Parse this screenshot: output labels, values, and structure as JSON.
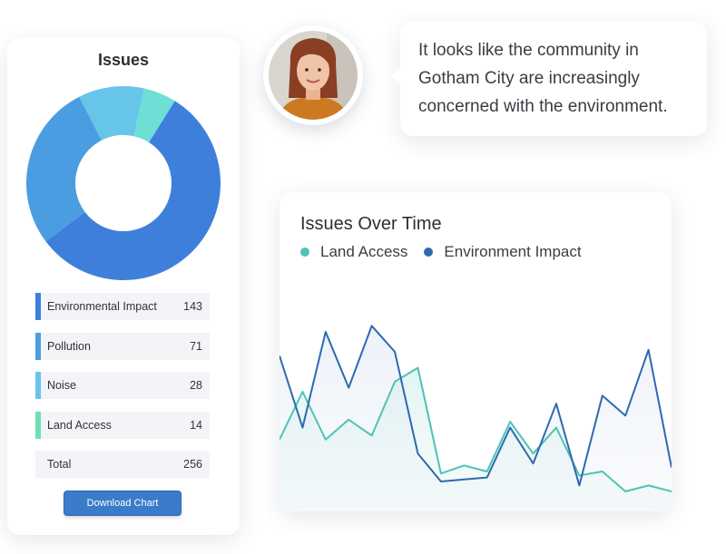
{
  "issues_panel": {
    "title": "Issues",
    "download_label": "Download Chart"
  },
  "chart_data": [
    {
      "type": "pie",
      "title": "Issues",
      "categories": [
        "Environmental Impact",
        "Pollution",
        "Noise",
        "Land Access"
      ],
      "values": [
        143,
        71,
        28,
        14
      ],
      "colors": [
        "#3f7fdc",
        "#4a9de0",
        "#67c5ea",
        "#6ddfd5"
      ],
      "total_label": "Total",
      "total": 256
    },
    {
      "type": "line",
      "title": "Issues Over Time",
      "xlabel": "",
      "ylabel": "",
      "legend": "top-left",
      "grid": false,
      "x": [
        0,
        1,
        2,
        3,
        4,
        5,
        6,
        7,
        8,
        9,
        10,
        11,
        12,
        13,
        14,
        15,
        16,
        17
      ],
      "series": [
        {
          "name": "Land Access",
          "color": "#4ec3b6",
          "values": [
            36,
            60,
            36,
            46,
            38,
            65,
            72,
            19,
            23,
            20,
            45,
            29,
            42,
            18,
            20,
            10,
            13,
            10
          ]
        },
        {
          "name": "Environment Impact",
          "color": "#2e69b0",
          "values": [
            78,
            42,
            90,
            62,
            93,
            80,
            29,
            15,
            16,
            17,
            42,
            24,
            54,
            13,
            58,
            48,
            81,
            22
          ]
        }
      ]
    }
  ],
  "chat": {
    "message": "It looks like the community in Gotham City are increasingly concerned with the environment."
  },
  "colors": {
    "accent": "#3a7cc9",
    "row_bg": "#f2f4f8"
  }
}
